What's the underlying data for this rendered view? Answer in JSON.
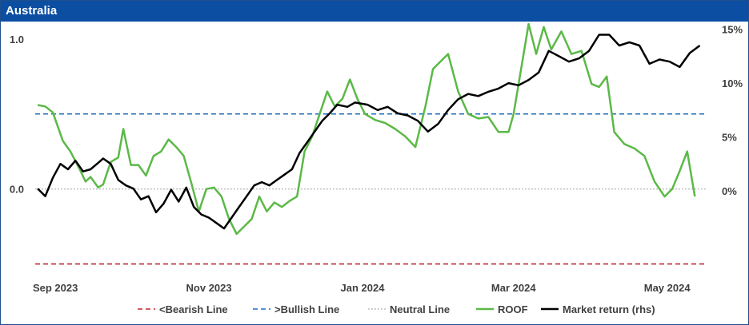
{
  "header": {
    "title": "Australia"
  },
  "chart_data": {
    "type": "line",
    "title": "Australia",
    "x_ticks": [
      "Sep 2023",
      "Nov 2023",
      "Jan 2024",
      "Mar 2024",
      "May 2024"
    ],
    "x_tick_dates": [
      "2023-09-01",
      "2023-11-01",
      "2024-01-01",
      "2024-03-01",
      "2024-05-01"
    ],
    "x_range": [
      "2023-08-24",
      "2024-05-17"
    ],
    "y_left": {
      "range": [
        -0.55,
        1.1
      ],
      "ticks": [
        1.0,
        0.0
      ],
      "tick_labels": [
        "1.0",
        "0.0"
      ]
    },
    "y_right": {
      "range": [
        -0.075,
        0.155
      ],
      "ticks": [
        0.15,
        0.1,
        0.05,
        0.0
      ],
      "tick_labels": [
        "15%",
        "10%",
        "5%",
        "0%"
      ]
    },
    "grid": false,
    "legend_position": "bottom",
    "legend": [
      "<Bearish Line",
      ">Bullish Line",
      "Neutral Line",
      "ROOF",
      "Market return (rhs)"
    ],
    "colors": {
      "bearish": "#c0282b",
      "bullish": "#1f6fbf",
      "neutral": "#bdbdbd",
      "roof": "#5bb947",
      "market": "#000000",
      "header": "#0b4ea2"
    },
    "reference_lines": [
      {
        "name": "<Bearish Line",
        "value": -0.5,
        "axis": "left",
        "style": "dashed"
      },
      {
        "name": ">Bullish Line",
        "value": 0.5,
        "axis": "left",
        "style": "dashed"
      },
      {
        "name": "Neutral Line",
        "value": 0.0,
        "axis": "left",
        "style": "dotted"
      }
    ],
    "series": [
      {
        "name": "ROOF",
        "axis": "left",
        "points": [
          [
            "2023-08-25",
            0.56
          ],
          [
            "2023-08-28",
            0.55
          ],
          [
            "2023-08-31",
            0.51
          ],
          [
            "2023-09-04",
            0.32
          ],
          [
            "2023-09-07",
            0.25
          ],
          [
            "2023-09-11",
            0.12
          ],
          [
            "2023-09-13",
            0.05
          ],
          [
            "2023-09-15",
            0.08
          ],
          [
            "2023-09-18",
            0.01
          ],
          [
            "2023-09-20",
            0.03
          ],
          [
            "2023-09-23",
            0.18
          ],
          [
            "2023-09-26",
            0.21
          ],
          [
            "2023-09-28",
            0.4
          ],
          [
            "2023-10-01",
            0.16
          ],
          [
            "2023-10-04",
            0.16
          ],
          [
            "2023-10-07",
            0.09
          ],
          [
            "2023-10-10",
            0.22
          ],
          [
            "2023-10-13",
            0.25
          ],
          [
            "2023-10-16",
            0.33
          ],
          [
            "2023-10-19",
            0.28
          ],
          [
            "2023-10-22",
            0.22
          ],
          [
            "2023-10-25",
            0.04
          ],
          [
            "2023-10-28",
            -0.15
          ],
          [
            "2023-10-31",
            0.0
          ],
          [
            "2023-11-03",
            0.01
          ],
          [
            "2023-11-06",
            -0.05
          ],
          [
            "2023-11-09",
            -0.2
          ],
          [
            "2023-11-12",
            -0.3
          ],
          [
            "2023-11-15",
            -0.25
          ],
          [
            "2023-11-18",
            -0.2
          ],
          [
            "2023-11-21",
            -0.05
          ],
          [
            "2023-11-24",
            -0.15
          ],
          [
            "2023-11-27",
            -0.09
          ],
          [
            "2023-11-30",
            -0.12
          ],
          [
            "2023-12-03",
            -0.08
          ],
          [
            "2023-12-06",
            -0.05
          ],
          [
            "2023-12-09",
            0.25
          ],
          [
            "2023-12-12",
            0.35
          ],
          [
            "2023-12-15",
            0.5
          ],
          [
            "2023-12-18",
            0.65
          ],
          [
            "2023-12-21",
            0.55
          ],
          [
            "2023-12-24",
            0.6
          ],
          [
            "2023-12-27",
            0.73
          ],
          [
            "2023-12-30",
            0.6
          ],
          [
            "2024-01-02",
            0.5
          ],
          [
            "2024-01-06",
            0.46
          ],
          [
            "2024-01-10",
            0.44
          ],
          [
            "2024-01-14",
            0.4
          ],
          [
            "2024-01-18",
            0.35
          ],
          [
            "2024-01-22",
            0.28
          ],
          [
            "2024-01-26",
            0.55
          ],
          [
            "2024-01-29",
            0.8
          ],
          [
            "2024-02-01",
            0.85
          ],
          [
            "2024-02-04",
            0.9
          ],
          [
            "2024-02-08",
            0.65
          ],
          [
            "2024-02-12",
            0.5
          ],
          [
            "2024-02-16",
            0.47
          ],
          [
            "2024-02-20",
            0.48
          ],
          [
            "2024-02-24",
            0.38
          ],
          [
            "2024-02-28",
            0.38
          ],
          [
            "2024-03-01",
            0.5
          ],
          [
            "2024-03-04",
            0.8
          ],
          [
            "2024-03-07",
            1.1
          ],
          [
            "2024-03-10",
            0.9
          ],
          [
            "2024-03-13",
            1.08
          ],
          [
            "2024-03-16",
            0.93
          ],
          [
            "2024-03-20",
            1.05
          ],
          [
            "2024-03-24",
            0.9
          ],
          [
            "2024-03-28",
            0.92
          ],
          [
            "2024-04-01",
            0.7
          ],
          [
            "2024-04-04",
            0.68
          ],
          [
            "2024-04-07",
            0.75
          ],
          [
            "2024-04-10",
            0.38
          ],
          [
            "2024-04-14",
            0.3
          ],
          [
            "2024-04-18",
            0.27
          ],
          [
            "2024-04-22",
            0.22
          ],
          [
            "2024-04-26",
            0.05
          ],
          [
            "2024-04-30",
            -0.05
          ],
          [
            "2024-05-03",
            0.0
          ],
          [
            "2024-05-06",
            0.12
          ],
          [
            "2024-05-09",
            0.25
          ],
          [
            "2024-05-12",
            -0.05
          ]
        ]
      },
      {
        "name": "Market return (rhs)",
        "axis": "right",
        "points": [
          [
            "2023-08-25",
            0.002
          ],
          [
            "2023-08-28",
            -0.005
          ],
          [
            "2023-08-31",
            0.012
          ],
          [
            "2023-09-03",
            0.025
          ],
          [
            "2023-09-06",
            0.02
          ],
          [
            "2023-09-09",
            0.028
          ],
          [
            "2023-09-12",
            0.018
          ],
          [
            "2023-09-15",
            0.02
          ],
          [
            "2023-09-18",
            0.026
          ],
          [
            "2023-09-20",
            0.03
          ],
          [
            "2023-09-23",
            0.025
          ],
          [
            "2023-09-26",
            0.01
          ],
          [
            "2023-09-29",
            0.005
          ],
          [
            "2023-10-02",
            0.002
          ],
          [
            "2023-10-05",
            -0.008
          ],
          [
            "2023-10-08",
            -0.005
          ],
          [
            "2023-10-11",
            -0.02
          ],
          [
            "2023-10-14",
            -0.012
          ],
          [
            "2023-10-17",
            0.001
          ],
          [
            "2023-10-20",
            -0.01
          ],
          [
            "2023-10-23",
            0.003
          ],
          [
            "2023-10-26",
            -0.015
          ],
          [
            "2023-10-29",
            -0.022
          ],
          [
            "2023-11-01",
            -0.025
          ],
          [
            "2023-11-04",
            -0.03
          ],
          [
            "2023-11-07",
            -0.035
          ],
          [
            "2023-11-10",
            -0.025
          ],
          [
            "2023-11-13",
            -0.015
          ],
          [
            "2023-11-16",
            -0.005
          ],
          [
            "2023-11-19",
            0.005
          ],
          [
            "2023-11-22",
            0.008
          ],
          [
            "2023-11-25",
            0.005
          ],
          [
            "2023-11-28",
            0.01
          ],
          [
            "2023-12-01",
            0.015
          ],
          [
            "2023-12-04",
            0.02
          ],
          [
            "2023-12-07",
            0.035
          ],
          [
            "2023-12-10",
            0.045
          ],
          [
            "2023-12-13",
            0.055
          ],
          [
            "2023-12-16",
            0.065
          ],
          [
            "2023-12-19",
            0.072
          ],
          [
            "2023-12-22",
            0.08
          ],
          [
            "2023-12-26",
            0.078
          ],
          [
            "2023-12-29",
            0.082
          ],
          [
            "2024-01-03",
            0.08
          ],
          [
            "2024-01-07",
            0.075
          ],
          [
            "2024-01-11",
            0.078
          ],
          [
            "2024-01-15",
            0.072
          ],
          [
            "2024-01-19",
            0.07
          ],
          [
            "2024-01-23",
            0.065
          ],
          [
            "2024-01-27",
            0.055
          ],
          [
            "2024-01-31",
            0.062
          ],
          [
            "2024-02-04",
            0.075
          ],
          [
            "2024-02-08",
            0.085
          ],
          [
            "2024-02-12",
            0.09
          ],
          [
            "2024-02-16",
            0.088
          ],
          [
            "2024-02-20",
            0.092
          ],
          [
            "2024-02-24",
            0.095
          ],
          [
            "2024-02-28",
            0.1
          ],
          [
            "2024-03-03",
            0.098
          ],
          [
            "2024-03-07",
            0.103
          ],
          [
            "2024-03-11",
            0.11
          ],
          [
            "2024-03-15",
            0.13
          ],
          [
            "2024-03-19",
            0.125
          ],
          [
            "2024-03-23",
            0.12
          ],
          [
            "2024-03-27",
            0.123
          ],
          [
            "2024-03-31",
            0.13
          ],
          [
            "2024-04-04",
            0.145
          ],
          [
            "2024-04-08",
            0.145
          ],
          [
            "2024-04-12",
            0.135
          ],
          [
            "2024-04-16",
            0.138
          ],
          [
            "2024-04-20",
            0.135
          ],
          [
            "2024-04-24",
            0.118
          ],
          [
            "2024-04-28",
            0.122
          ],
          [
            "2024-05-02",
            0.12
          ],
          [
            "2024-05-06",
            0.115
          ],
          [
            "2024-05-10",
            0.128
          ],
          [
            "2024-05-14",
            0.135
          ]
        ]
      }
    ]
  }
}
